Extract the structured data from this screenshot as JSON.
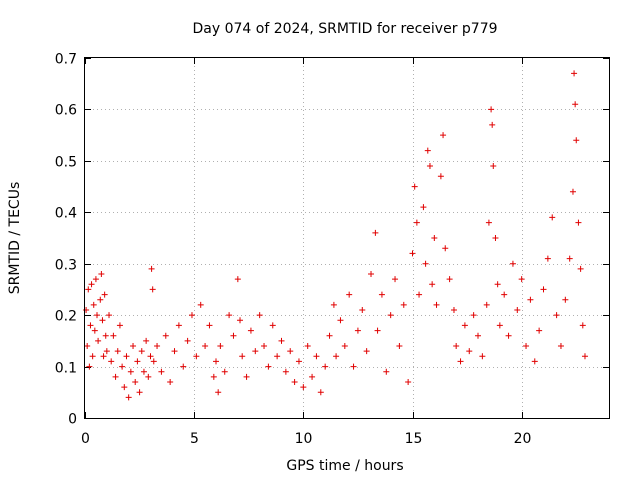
{
  "chart_data": {
    "type": "scatter",
    "title": "Day 074 of 2024, SRMTID for receiver p779",
    "xlabel": "GPS time / hours",
    "ylabel": "SRMTID / TECUs",
    "xlim": [
      0,
      24
    ],
    "ylim": [
      0,
      0.7
    ],
    "xticks": [
      0,
      5,
      10,
      15,
      20
    ],
    "yticks": [
      0,
      0.1,
      0.2,
      0.3,
      0.4,
      0.5,
      0.6,
      0.7
    ],
    "ytick_labels": [
      "0",
      "0.1",
      "0.2",
      "0.3",
      "0.4",
      "0.5",
      "0.6",
      "0.7"
    ],
    "grid": true,
    "marker": "+",
    "color": "#e00000",
    "series": [
      {
        "name": "SRMTID",
        "points": [
          [
            0.05,
            0.21
          ],
          [
            0.1,
            0.14
          ],
          [
            0.15,
            0.25
          ],
          [
            0.2,
            0.1
          ],
          [
            0.25,
            0.18
          ],
          [
            0.3,
            0.26
          ],
          [
            0.35,
            0.12
          ],
          [
            0.4,
            0.22
          ],
          [
            0.45,
            0.17
          ],
          [
            0.5,
            0.27
          ],
          [
            0.55,
            0.2
          ],
          [
            0.6,
            0.15
          ],
          [
            0.7,
            0.23
          ],
          [
            0.75,
            0.28
          ],
          [
            0.8,
            0.19
          ],
          [
            0.85,
            0.12
          ],
          [
            0.9,
            0.24
          ],
          [
            0.95,
            0.16
          ],
          [
            1.0,
            0.13
          ],
          [
            1.1,
            0.2
          ],
          [
            1.2,
            0.11
          ],
          [
            1.3,
            0.16
          ],
          [
            1.4,
            0.08
          ],
          [
            1.5,
            0.13
          ],
          [
            1.6,
            0.18
          ],
          [
            1.7,
            0.1
          ],
          [
            1.8,
            0.06
          ],
          [
            1.9,
            0.12
          ],
          [
            2.0,
            0.04
          ],
          [
            2.1,
            0.09
          ],
          [
            2.2,
            0.14
          ],
          [
            2.3,
            0.07
          ],
          [
            2.4,
            0.11
          ],
          [
            2.5,
            0.05
          ],
          [
            2.6,
            0.13
          ],
          [
            2.7,
            0.09
          ],
          [
            2.8,
            0.15
          ],
          [
            2.9,
            0.08
          ],
          [
            3.0,
            0.12
          ],
          [
            3.05,
            0.29
          ],
          [
            3.1,
            0.25
          ],
          [
            3.15,
            0.11
          ],
          [
            3.3,
            0.14
          ],
          [
            3.5,
            0.09
          ],
          [
            3.7,
            0.16
          ],
          [
            3.9,
            0.07
          ],
          [
            4.1,
            0.13
          ],
          [
            4.3,
            0.18
          ],
          [
            4.5,
            0.1
          ],
          [
            4.7,
            0.15
          ],
          [
            4.9,
            0.2
          ],
          [
            5.1,
            0.12
          ],
          [
            5.3,
            0.22
          ],
          [
            5.5,
            0.14
          ],
          [
            5.7,
            0.18
          ],
          [
            5.9,
            0.08
          ],
          [
            6.0,
            0.11
          ],
          [
            6.1,
            0.05
          ],
          [
            6.2,
            0.14
          ],
          [
            6.4,
            0.09
          ],
          [
            6.6,
            0.2
          ],
          [
            6.8,
            0.16
          ],
          [
            7.0,
            0.27
          ],
          [
            7.1,
            0.19
          ],
          [
            7.2,
            0.12
          ],
          [
            7.4,
            0.08
          ],
          [
            7.6,
            0.17
          ],
          [
            7.8,
            0.13
          ],
          [
            8.0,
            0.2
          ],
          [
            8.2,
            0.14
          ],
          [
            8.4,
            0.1
          ],
          [
            8.6,
            0.18
          ],
          [
            8.8,
            0.12
          ],
          [
            9.0,
            0.15
          ],
          [
            9.2,
            0.09
          ],
          [
            9.4,
            0.13
          ],
          [
            9.6,
            0.07
          ],
          [
            9.8,
            0.11
          ],
          [
            10.0,
            0.06
          ],
          [
            10.2,
            0.14
          ],
          [
            10.4,
            0.08
          ],
          [
            10.6,
            0.12
          ],
          [
            10.8,
            0.05
          ],
          [
            11.0,
            0.1
          ],
          [
            11.2,
            0.16
          ],
          [
            11.4,
            0.22
          ],
          [
            11.5,
            0.12
          ],
          [
            11.7,
            0.19
          ],
          [
            11.9,
            0.14
          ],
          [
            12.1,
            0.24
          ],
          [
            12.3,
            0.1
          ],
          [
            12.5,
            0.17
          ],
          [
            12.7,
            0.21
          ],
          [
            12.9,
            0.13
          ],
          [
            13.1,
            0.28
          ],
          [
            13.3,
            0.36
          ],
          [
            13.4,
            0.17
          ],
          [
            13.6,
            0.24
          ],
          [
            13.8,
            0.09
          ],
          [
            14.0,
            0.2
          ],
          [
            14.2,
            0.27
          ],
          [
            14.4,
            0.14
          ],
          [
            14.6,
            0.22
          ],
          [
            14.8,
            0.07
          ],
          [
            15.0,
            0.32
          ],
          [
            15.1,
            0.45
          ],
          [
            15.2,
            0.38
          ],
          [
            15.3,
            0.24
          ],
          [
            15.5,
            0.41
          ],
          [
            15.6,
            0.3
          ],
          [
            15.7,
            0.52
          ],
          [
            15.8,
            0.49
          ],
          [
            15.9,
            0.26
          ],
          [
            16.0,
            0.35
          ],
          [
            16.1,
            0.22
          ],
          [
            16.3,
            0.47
          ],
          [
            16.4,
            0.55
          ],
          [
            16.5,
            0.33
          ],
          [
            16.7,
            0.27
          ],
          [
            16.9,
            0.21
          ],
          [
            17.0,
            0.14
          ],
          [
            17.2,
            0.11
          ],
          [
            17.4,
            0.18
          ],
          [
            17.6,
            0.13
          ],
          [
            17.8,
            0.2
          ],
          [
            18.0,
            0.16
          ],
          [
            18.2,
            0.12
          ],
          [
            18.4,
            0.22
          ],
          [
            18.5,
            0.38
          ],
          [
            18.6,
            0.6
          ],
          [
            18.65,
            0.57
          ],
          [
            18.7,
            0.49
          ],
          [
            18.8,
            0.35
          ],
          [
            18.9,
            0.26
          ],
          [
            19.0,
            0.18
          ],
          [
            19.2,
            0.24
          ],
          [
            19.4,
            0.16
          ],
          [
            19.6,
            0.3
          ],
          [
            19.8,
            0.21
          ],
          [
            20.0,
            0.27
          ],
          [
            20.2,
            0.14
          ],
          [
            20.4,
            0.23
          ],
          [
            20.6,
            0.11
          ],
          [
            20.8,
            0.17
          ],
          [
            21.0,
            0.25
          ],
          [
            21.2,
            0.31
          ],
          [
            21.4,
            0.39
          ],
          [
            21.6,
            0.2
          ],
          [
            21.8,
            0.14
          ],
          [
            22.0,
            0.23
          ],
          [
            22.2,
            0.31
          ],
          [
            22.35,
            0.44
          ],
          [
            22.4,
            0.67
          ],
          [
            22.45,
            0.61
          ],
          [
            22.5,
            0.54
          ],
          [
            22.6,
            0.38
          ],
          [
            22.7,
            0.29
          ],
          [
            22.8,
            0.18
          ],
          [
            22.9,
            0.12
          ]
        ]
      }
    ]
  }
}
